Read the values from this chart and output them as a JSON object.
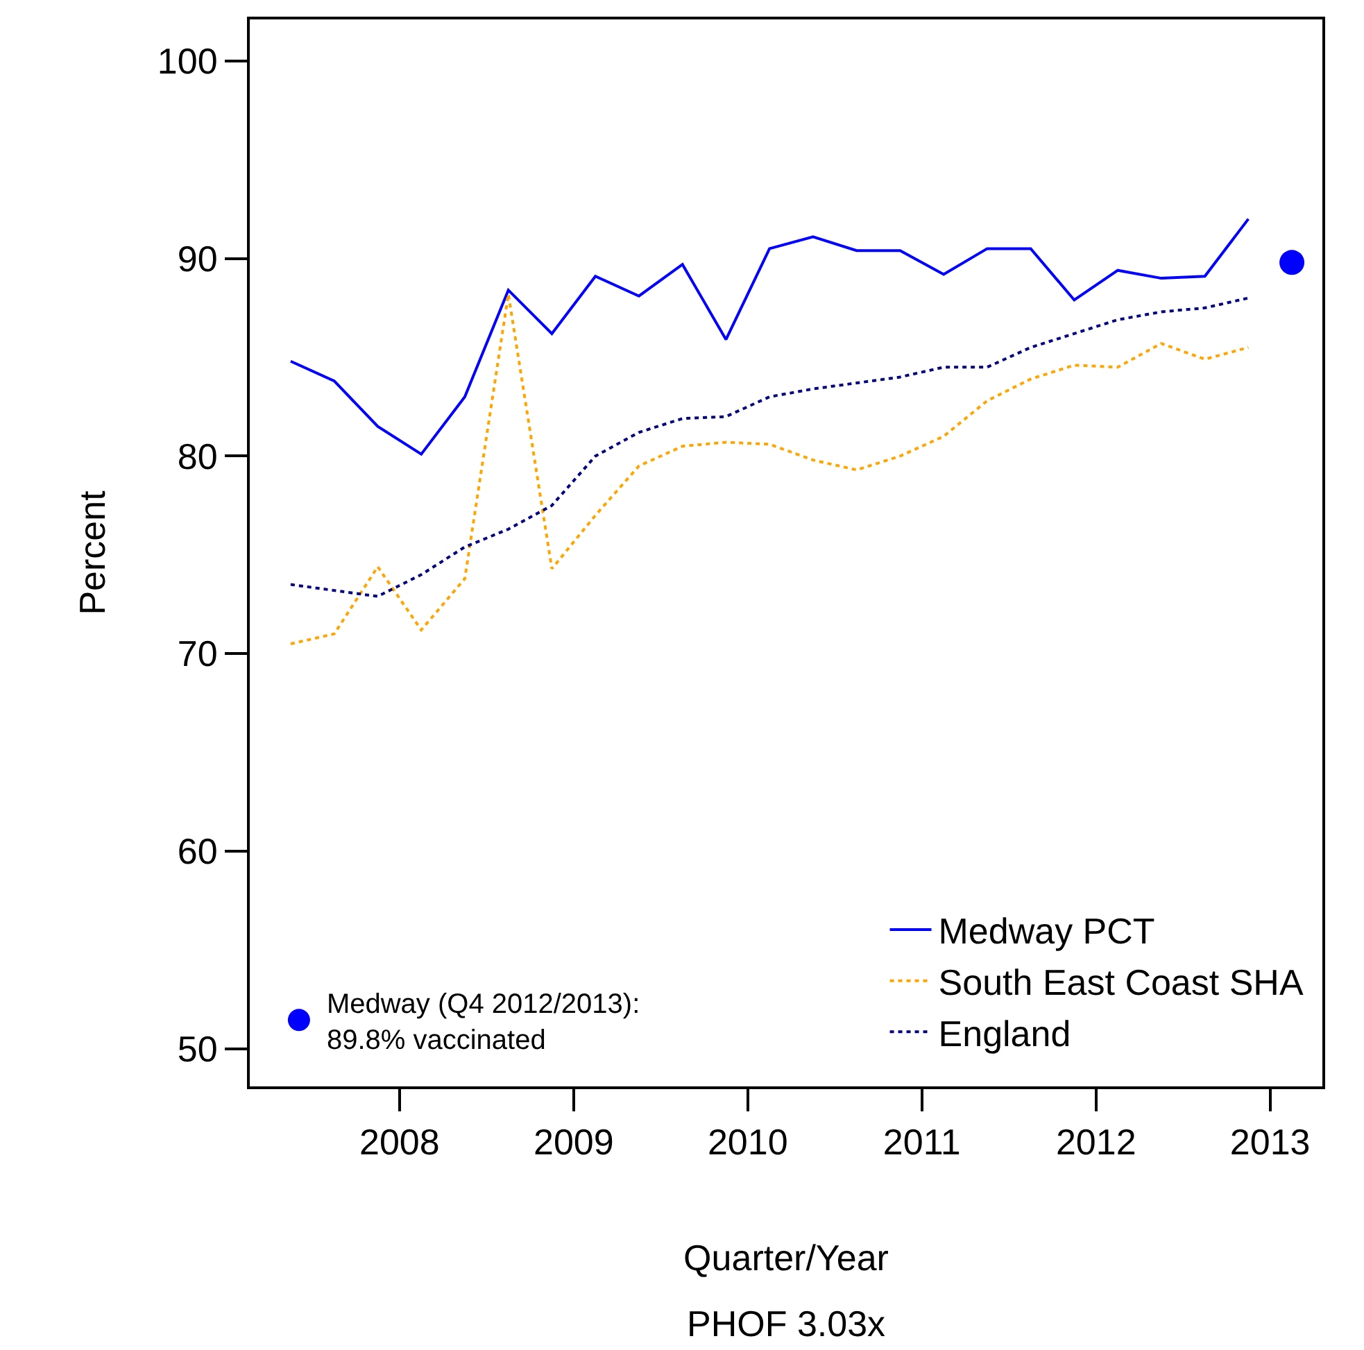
{
  "chart_data": {
    "type": "line",
    "xlabel": "Quarter/Year",
    "ylabel": "Percent",
    "annotations": [
      "PHOF 3.03x"
    ],
    "x": [
      2007.375,
      2007.625,
      2007.875,
      2008.125,
      2008.375,
      2008.625,
      2008.875,
      2009.125,
      2009.375,
      2009.625,
      2009.875,
      2010.125,
      2010.375,
      2010.625,
      2010.875,
      2011.125,
      2011.375,
      2011.625,
      2011.875,
      2012.125,
      2012.375,
      2012.625,
      2012.875
    ],
    "series": [
      {
        "name": "Medway PCT",
        "color": "#0000ff",
        "line_style": "solid",
        "values": [
          84.8,
          83.8,
          81.5,
          80.1,
          83.0,
          88.4,
          86.2,
          89.1,
          88.1,
          89.7,
          85.9,
          90.5,
          91.1,
          90.4,
          90.4,
          89.2,
          90.5,
          90.5,
          87.9,
          89.4,
          89.0,
          89.1,
          92.0
        ]
      },
      {
        "name": "South East Coast SHA",
        "color": "#ffa500",
        "line_style": "dotted",
        "values": [
          70.5,
          71.0,
          74.4,
          71.2,
          73.8,
          88.2,
          74.3,
          77.0,
          79.5,
          80.5,
          80.7,
          80.6,
          79.8,
          79.3,
          80.0,
          81.0,
          82.8,
          83.9,
          84.6,
          84.5,
          85.7,
          84.9,
          85.5
        ]
      },
      {
        "name": "England",
        "color": "#000080",
        "line_style": "dotted",
        "values": [
          73.5,
          73.2,
          72.9,
          74.0,
          75.4,
          76.3,
          77.5,
          80.0,
          81.2,
          81.9,
          82.0,
          83.0,
          83.4,
          83.7,
          84.0,
          84.5,
          84.5,
          85.5,
          86.2,
          86.9,
          87.3,
          87.5,
          88.0
        ]
      },
      {
        "name": "Medway (Q4 2012/2013):\n89.8% vaccinated",
        "type": "scatter",
        "marker": "circle",
        "color": "#0000ff",
        "x": [
          2013.125
        ],
        "values": [
          89.8
        ]
      }
    ],
    "xlim": [
      2007.14,
      2013.3
    ],
    "xticks": [
      2008,
      2009,
      2010,
      2011,
      2012,
      2013
    ],
    "ylim": [
      48.1,
      102.1
    ],
    "yticks": [
      50,
      60,
      70,
      80,
      90,
      100
    ],
    "legend": "bottom right",
    "marker": "none",
    "grid": false
  }
}
